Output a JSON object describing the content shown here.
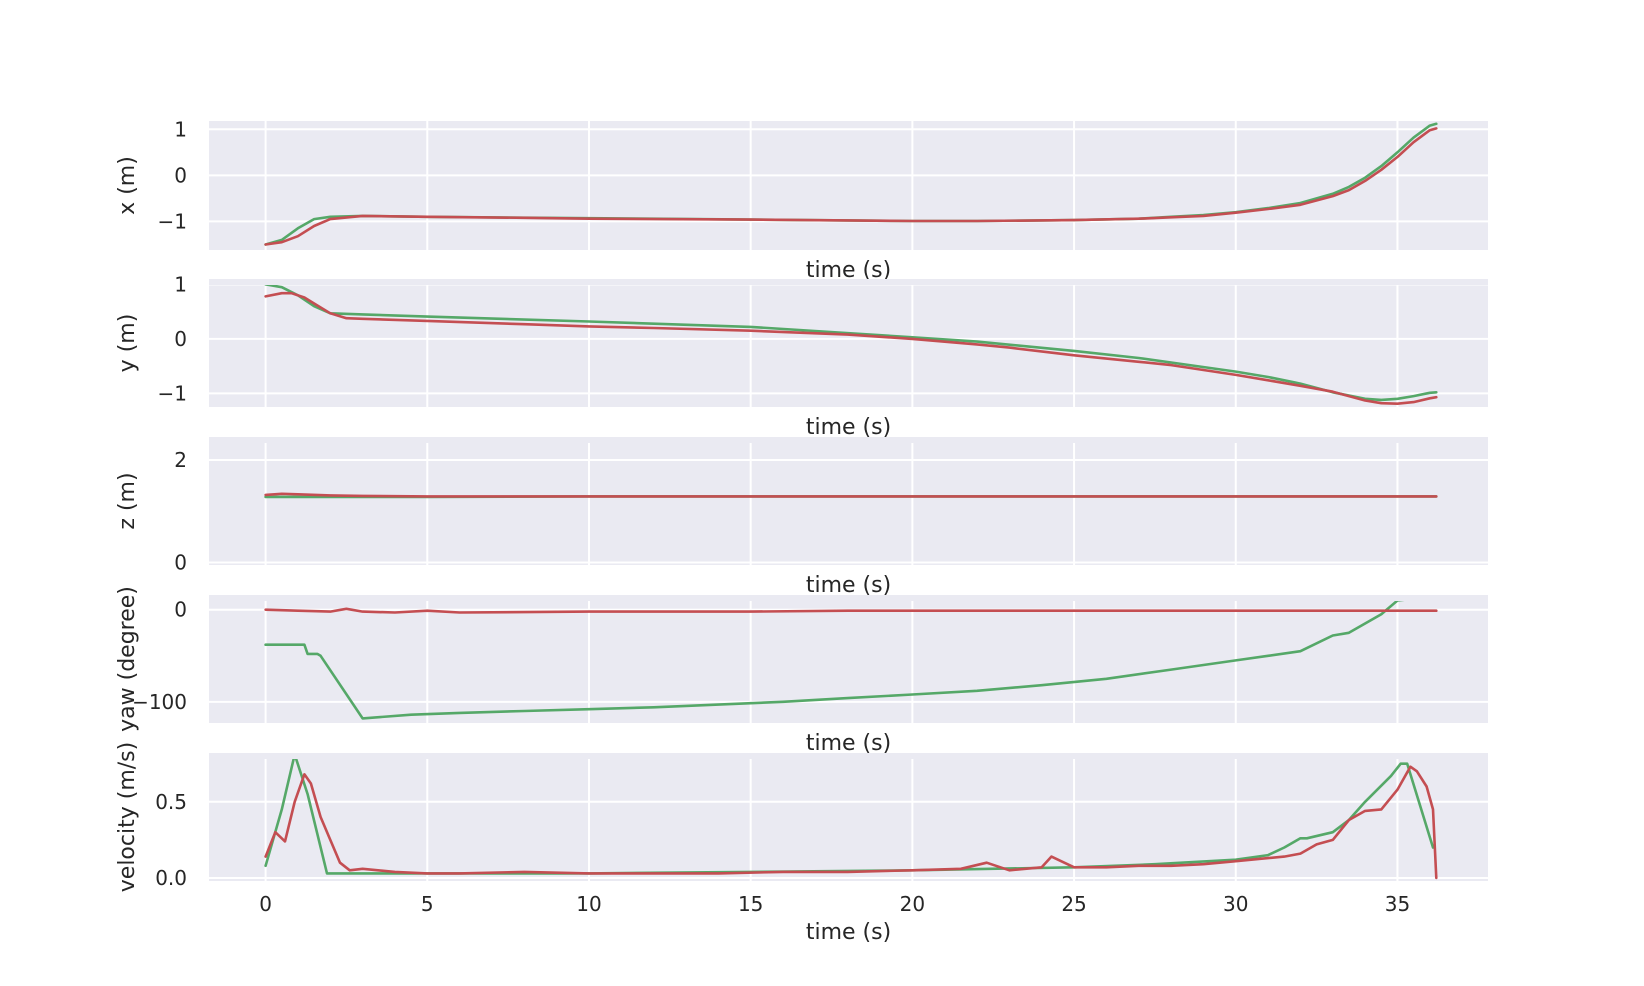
{
  "chart_data": [
    {
      "type": "line",
      "xlabel": "time (s)",
      "ylabel": "x (m)",
      "xlim": [
        -1.75,
        37.8
      ],
      "ylim": [
        -1.62,
        1.18
      ],
      "xticks": [
        0,
        5,
        10,
        15,
        20,
        25,
        30,
        35
      ],
      "yticks": [
        -1,
        0,
        1
      ],
      "grid": true,
      "series": [
        {
          "color": "#55a868",
          "x": [
            0,
            0.5,
            1,
            1.5,
            2,
            3,
            5,
            10,
            15,
            20,
            22,
            25,
            27,
            28,
            29,
            30,
            31,
            32,
            33,
            33.5,
            34,
            34.5,
            35,
            35.5,
            36,
            36.2
          ],
          "y": [
            -1.5,
            -1.4,
            -1.15,
            -0.95,
            -0.9,
            -0.88,
            -0.9,
            -0.93,
            -0.96,
            -0.99,
            -0.99,
            -0.97,
            -0.94,
            -0.9,
            -0.86,
            -0.8,
            -0.71,
            -0.6,
            -0.4,
            -0.25,
            -0.05,
            0.2,
            0.5,
            0.82,
            1.08,
            1.12
          ]
        },
        {
          "color": "#c44e52",
          "x": [
            0,
            0.5,
            1,
            1.5,
            2,
            3,
            5,
            8,
            10,
            15,
            20,
            22,
            25,
            27,
            28,
            29,
            30,
            31,
            32,
            33,
            33.5,
            34,
            34.5,
            35,
            35.5,
            36,
            36.2
          ],
          "y": [
            -1.5,
            -1.45,
            -1.32,
            -1.1,
            -0.95,
            -0.88,
            -0.9,
            -0.92,
            -0.94,
            -0.96,
            -0.99,
            -0.99,
            -0.97,
            -0.94,
            -0.91,
            -0.88,
            -0.81,
            -0.73,
            -0.64,
            -0.45,
            -0.32,
            -0.12,
            0.12,
            0.4,
            0.72,
            0.98,
            1.02
          ]
        }
      ]
    },
    {
      "type": "line",
      "xlabel": "time (s)",
      "ylabel": "y (m)",
      "xlim": [
        -1.75,
        37.8
      ],
      "ylim": [
        -1.25,
        1.1
      ],
      "xticks": [
        0,
        5,
        10,
        15,
        20,
        25,
        30,
        35
      ],
      "yticks": [
        -1,
        0,
        1
      ],
      "grid": true,
      "series": [
        {
          "color": "#55a868",
          "x": [
            0,
            0.5,
            1,
            1.5,
            2,
            3,
            5,
            10,
            15,
            20,
            22,
            25,
            27,
            30,
            31,
            32,
            33,
            34,
            34.5,
            35,
            35.5,
            36,
            36.2
          ],
          "y": [
            1.0,
            0.95,
            0.8,
            0.6,
            0.47,
            0.45,
            0.41,
            0.32,
            0.22,
            0.03,
            -0.05,
            -0.22,
            -0.35,
            -0.6,
            -0.7,
            -0.82,
            -0.98,
            -1.1,
            -1.12,
            -1.1,
            -1.05,
            -0.99,
            -0.98
          ]
        },
        {
          "color": "#c44e52",
          "x": [
            0,
            0.5,
            0.8,
            1.2,
            1.5,
            2,
            2.5,
            3,
            5,
            8,
            10,
            12,
            15,
            18,
            20,
            22,
            23,
            25,
            27,
            28,
            30,
            31,
            32,
            33,
            33.5,
            34,
            34.5,
            35,
            35.5,
            36,
            36.2
          ],
          "y": [
            0.78,
            0.84,
            0.84,
            0.76,
            0.65,
            0.47,
            0.38,
            0.37,
            0.33,
            0.27,
            0.23,
            0.2,
            0.15,
            0.08,
            0.0,
            -0.1,
            -0.16,
            -0.3,
            -0.42,
            -0.48,
            -0.66,
            -0.76,
            -0.86,
            -0.97,
            -1.05,
            -1.13,
            -1.18,
            -1.19,
            -1.16,
            -1.09,
            -1.07
          ]
        }
      ]
    },
    {
      "type": "line",
      "xlabel": "time (s)",
      "ylabel": "z (m)",
      "xlim": [
        -1.75,
        37.8
      ],
      "ylim": [
        -0.05,
        2.45
      ],
      "xticks": [
        0,
        5,
        10,
        15,
        20,
        25,
        30,
        35
      ],
      "yticks": [
        0,
        2
      ],
      "grid": true,
      "series": [
        {
          "color": "#55a868",
          "x": [
            0,
            5,
            10,
            20,
            30,
            36.2
          ],
          "y": [
            1.28,
            1.28,
            1.29,
            1.29,
            1.29,
            1.29
          ]
        },
        {
          "color": "#c44e52",
          "x": [
            0,
            0.5,
            1,
            2,
            3,
            5,
            10,
            15,
            20,
            25,
            30,
            36.2
          ],
          "y": [
            1.32,
            1.34,
            1.33,
            1.31,
            1.3,
            1.29,
            1.29,
            1.29,
            1.29,
            1.29,
            1.29,
            1.29
          ]
        }
      ]
    },
    {
      "type": "line",
      "xlabel": "time (s)",
      "ylabel": "yaw (degree)",
      "xlim": [
        -1.75,
        37.8
      ],
      "ylim": [
        -123,
        16
      ],
      "xticks": [
        0,
        5,
        10,
        15,
        20,
        25,
        30,
        35
      ],
      "yticks": [
        -100,
        0
      ],
      "grid": true,
      "series": [
        {
          "color": "#55a868",
          "x": [
            0,
            1.2,
            1.3,
            1.6,
            1.7,
            3.0,
            4.5,
            6,
            8,
            10,
            12,
            14,
            16,
            18,
            20,
            22,
            24,
            26,
            28,
            30,
            31,
            32,
            33,
            33.5,
            34,
            34.5,
            35,
            35.5,
            36.2
          ],
          "y": [
            -38,
            -38,
            -48,
            -48,
            -50,
            -118,
            -114,
            -112,
            -110,
            -108,
            -106,
            -103,
            -100,
            -96,
            -92,
            -88,
            -82,
            -75,
            -65,
            -55,
            -50,
            -45,
            -28,
            -25,
            -15,
            -5,
            10,
            12,
            12
          ]
        },
        {
          "color": "#c44e52",
          "x": [
            0,
            1,
            2,
            2.5,
            3,
            4,
            5,
            6,
            10,
            15,
            18,
            20,
            25,
            30,
            35,
            36.2
          ],
          "y": [
            0,
            -1,
            -2,
            1,
            -2,
            -3,
            -1,
            -3,
            -2,
            -2,
            -1,
            -1,
            -1,
            -1,
            -1,
            -1
          ]
        }
      ]
    },
    {
      "type": "line",
      "xlabel": "time (s)",
      "ylabel": "velocity (m/s)",
      "xlim": [
        -1.75,
        37.8
      ],
      "ylim": [
        -0.02,
        0.82
      ],
      "xticks": [
        0,
        5,
        10,
        15,
        20,
        25,
        30,
        35
      ],
      "yticks": [
        0.0,
        0.5
      ],
      "grid": true,
      "series": [
        {
          "color": "#55a868",
          "x": [
            0,
            0.5,
            0.9,
            1.3,
            1.9,
            2.5,
            5,
            10,
            15,
            20,
            25,
            27.5,
            30,
            31,
            31.5,
            32,
            32.2,
            33,
            33.5,
            34,
            34.8,
            35.1,
            35.3,
            36.1
          ],
          "y": [
            0.08,
            0.45,
            0.81,
            0.55,
            0.03,
            0.03,
            0.03,
            0.03,
            0.04,
            0.05,
            0.07,
            0.09,
            0.12,
            0.15,
            0.2,
            0.26,
            0.26,
            0.3,
            0.38,
            0.5,
            0.67,
            0.75,
            0.75,
            0.2
          ]
        },
        {
          "color": "#c44e52",
          "x": [
            0,
            0.3,
            0.6,
            0.9,
            1.2,
            1.4,
            1.7,
            2.0,
            2.3,
            2.6,
            3.0,
            4,
            5,
            6,
            8,
            10,
            12,
            14,
            16,
            18,
            20,
            21.5,
            22.3,
            23,
            24,
            24.3,
            25,
            26,
            27,
            28,
            29,
            30,
            31,
            31.5,
            32,
            32.5,
            33,
            33.5,
            34,
            34.5,
            35,
            35.4,
            35.6,
            35.9,
            36.1,
            36.2
          ],
          "y": [
            0.14,
            0.3,
            0.24,
            0.5,
            0.68,
            0.62,
            0.4,
            0.25,
            0.1,
            0.05,
            0.06,
            0.04,
            0.03,
            0.03,
            0.04,
            0.03,
            0.03,
            0.03,
            0.04,
            0.04,
            0.05,
            0.06,
            0.1,
            0.05,
            0.07,
            0.14,
            0.07,
            0.07,
            0.08,
            0.08,
            0.09,
            0.11,
            0.13,
            0.14,
            0.16,
            0.22,
            0.25,
            0.38,
            0.44,
            0.45,
            0.58,
            0.73,
            0.7,
            0.6,
            0.45,
            0.0
          ]
        }
      ]
    }
  ]
}
